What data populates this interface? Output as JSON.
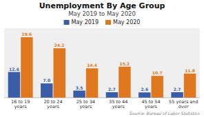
{
  "chart_data": {
    "type": "bar",
    "title": "Unemployment By Age Group",
    "subtitle": "May 2019 to May 2020",
    "categories": [
      "16 to 19 years",
      "20 to 24 years",
      "25 to 34 years",
      "35 to 44 years",
      "45 to 54 years",
      "55 years and over"
    ],
    "series": [
      {
        "name": "May 2019",
        "color": "#3A5DA8",
        "values": [
          12.6,
          7.0,
          3.5,
          2.7,
          2.6,
          2.7
        ],
        "value_labels": [
          "12.6",
          "7.0",
          "3.5",
          "2.7",
          "2.6",
          "2.7"
        ]
      },
      {
        "name": "May 2020",
        "color": "#E07820",
        "values": [
          29.6,
          24.2,
          14.4,
          15.2,
          10.7,
          11.8
        ]
      }
    ],
    "ylim": [
      0,
      34
    ],
    "grid": false,
    "legend": "top",
    "data_labels": true,
    "tick_labels": "x",
    "annotations": [
      "Source: Bureau of Labor Statistics"
    ]
  }
}
